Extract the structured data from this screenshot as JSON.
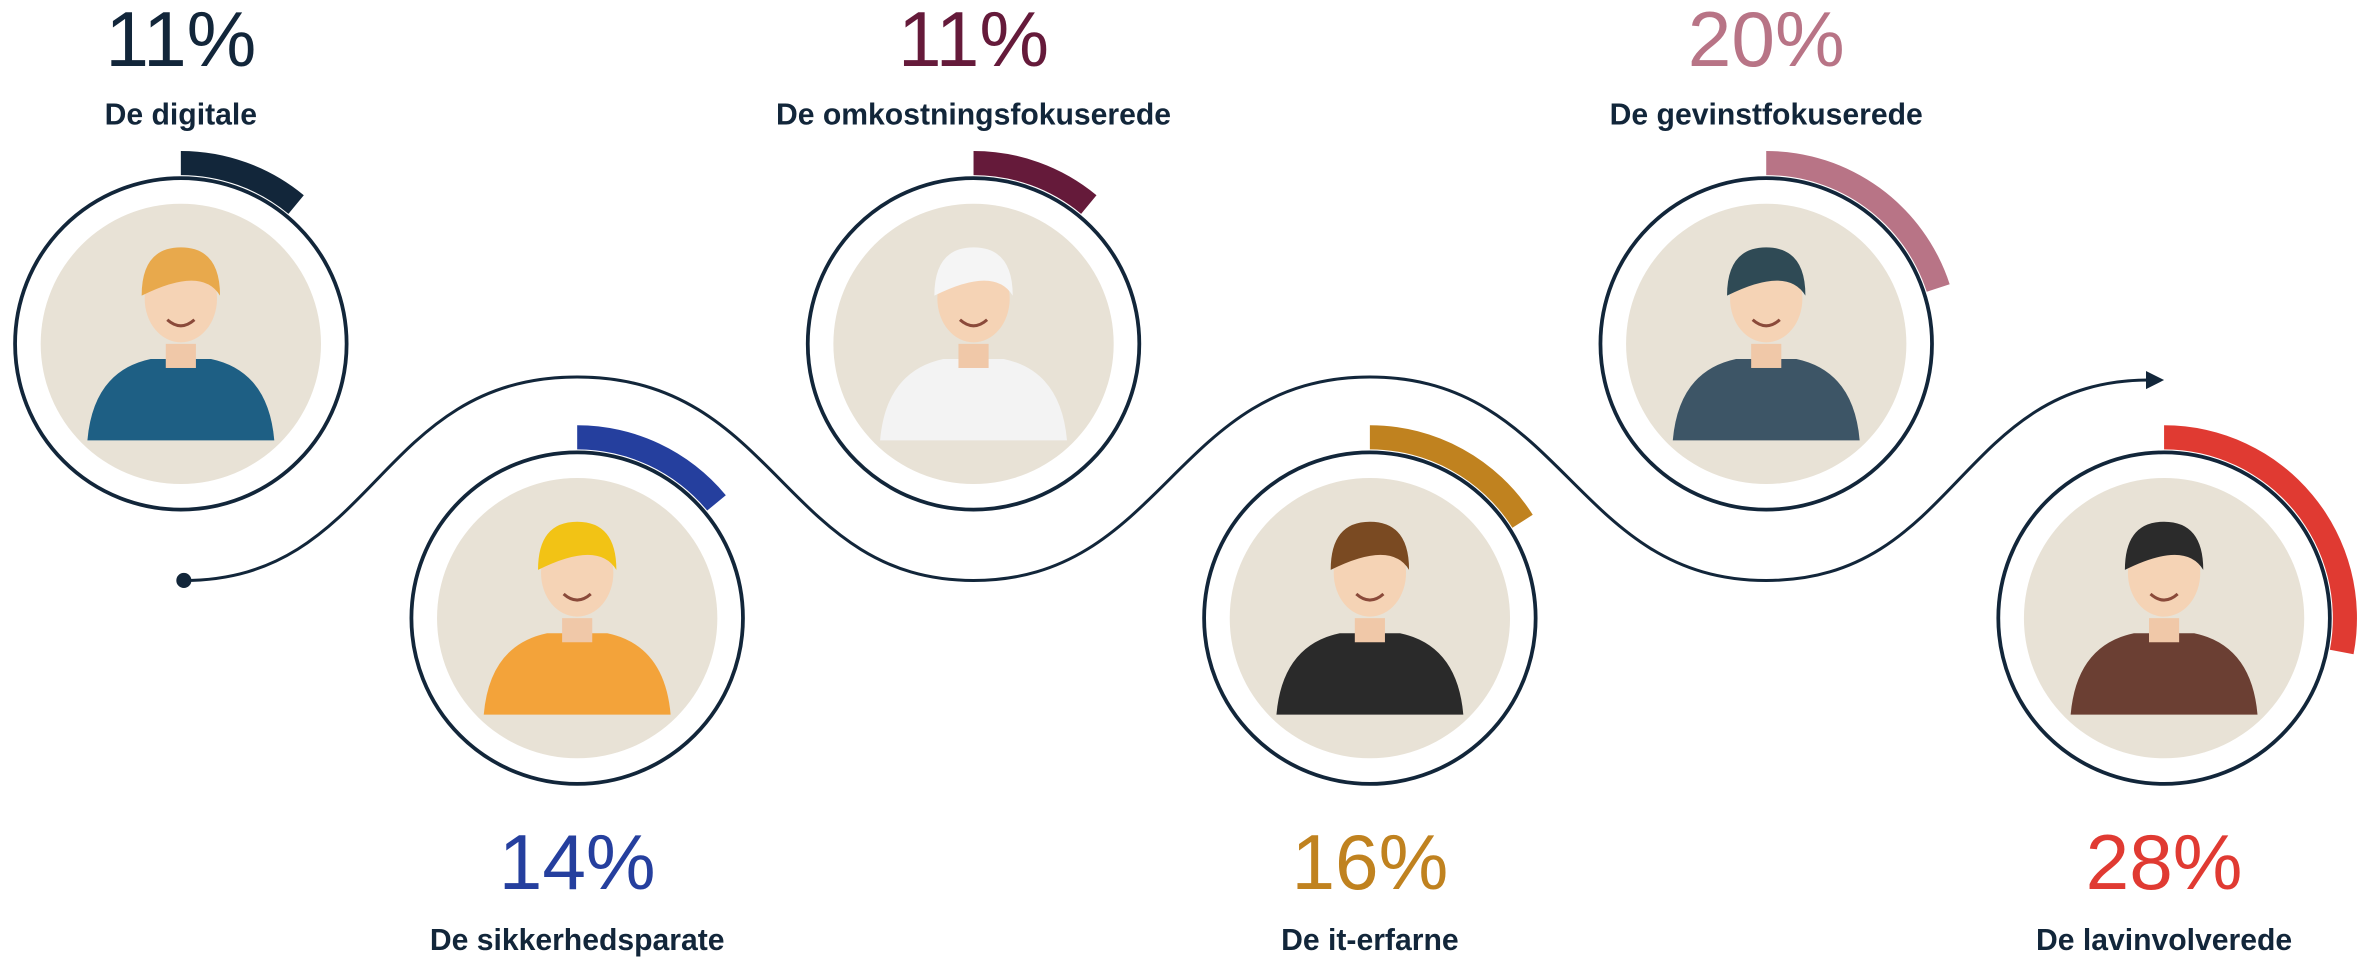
{
  "chart_data": {
    "type": "persona-rings",
    "categories": [
      "De digitale",
      "De sikkerhedsparate",
      "De omkostningsfokuserede",
      "De it-erfarne",
      "De gevinstfokuserede",
      "De lavinvolverede"
    ],
    "values": [
      11,
      14,
      11,
      16,
      20,
      28
    ],
    "value_labels": [
      "11%",
      "14%",
      "11%",
      "16%",
      "20%",
      "28%"
    ],
    "colors": [
      "#12263a",
      "#253f9e",
      "#651a3a",
      "#c0821f",
      "#b87486",
      "#e03a32"
    ]
  }
}
